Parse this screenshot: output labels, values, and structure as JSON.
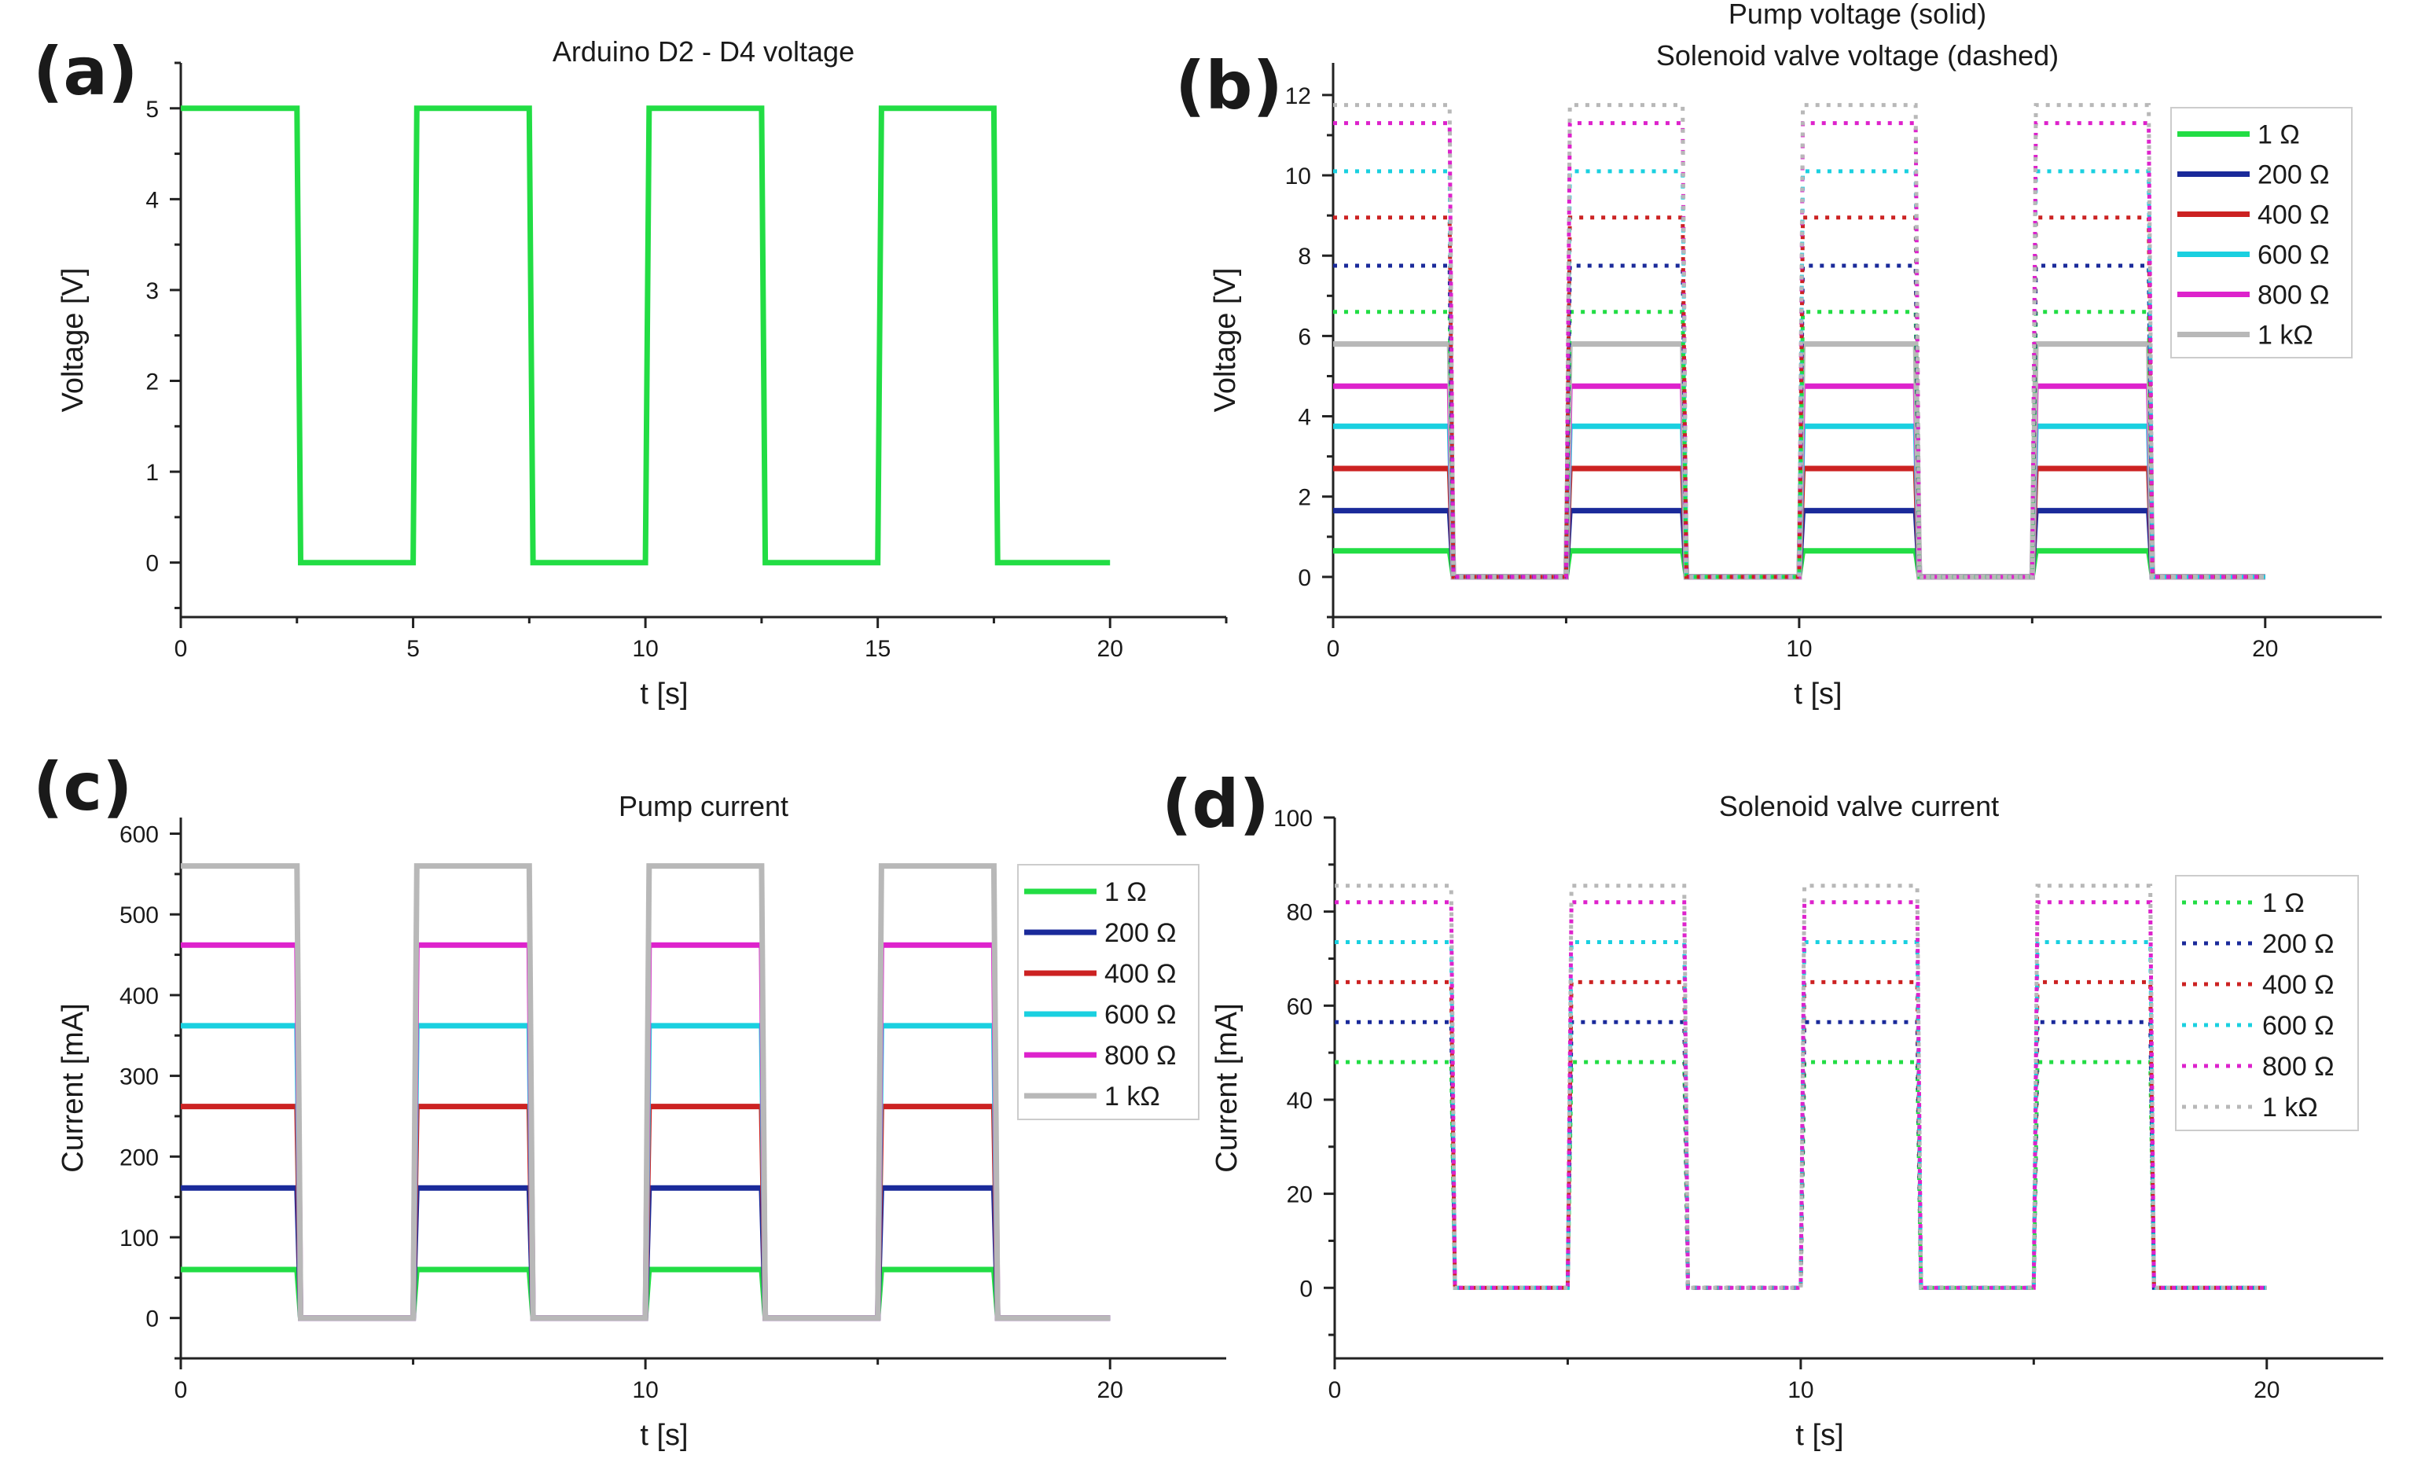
{
  "chart_data": [
    {
      "id": "a",
      "panel_label": "(a)",
      "type": "line",
      "title_lines": [
        "Arduino D2 - D4 voltage"
      ],
      "xlabel": "t [s]",
      "ylabel": "Voltage [V]",
      "xlim": [
        0,
        22.5
      ],
      "ylim": [
        -0.6,
        5.5
      ],
      "xticks": [
        0,
        5,
        10,
        15,
        20
      ],
      "yticks": [
        0,
        1,
        2,
        3,
        4,
        5
      ],
      "legend": null,
      "series": [
        {
          "name": "Arduino D2 - D4",
          "color": "#22dd44",
          "style": "solid",
          "high": 5,
          "low": 0
        }
      ]
    },
    {
      "id": "b",
      "panel_label": "(b)",
      "type": "line",
      "title_lines": [
        "Pump voltage (solid)",
        "Solenoid valve voltage (dashed)"
      ],
      "xlabel": "t [s]",
      "ylabel": "Voltage [V]",
      "xlim": [
        0,
        22.5
      ],
      "ylim": [
        -1,
        12.8
      ],
      "xticks": [
        0,
        10,
        20
      ],
      "yticks": [
        0,
        2,
        4,
        6,
        8,
        10,
        12
      ],
      "legend": {
        "position": "top-right",
        "entries": [
          {
            "label": "1 Ω",
            "color": "#22dd44",
            "style": "solid"
          },
          {
            "label": "200 Ω",
            "color": "#1a2a9a",
            "style": "solid"
          },
          {
            "label": "400 Ω",
            "color": "#cc2222",
            "style": "solid"
          },
          {
            "label": "600 Ω",
            "color": "#1ad0e0",
            "style": "solid"
          },
          {
            "label": "800 Ω",
            "color": "#dd22cc",
            "style": "solid"
          },
          {
            "label": "1 kΩ",
            "color": "#b8b8b8",
            "style": "solid"
          }
        ]
      },
      "series": [
        {
          "name": "Pump 1 Ω",
          "color": "#22dd44",
          "style": "solid",
          "high": 0.65,
          "low": 0
        },
        {
          "name": "Pump 200 Ω",
          "color": "#1a2a9a",
          "style": "solid",
          "high": 1.65,
          "low": 0
        },
        {
          "name": "Pump 400 Ω",
          "color": "#cc2222",
          "style": "solid",
          "high": 2.7,
          "low": 0
        },
        {
          "name": "Pump 600 Ω",
          "color": "#1ad0e0",
          "style": "solid",
          "high": 3.75,
          "low": 0
        },
        {
          "name": "Pump 800 Ω",
          "color": "#dd22cc",
          "style": "solid",
          "high": 4.75,
          "low": 0
        },
        {
          "name": "Pump 1 kΩ",
          "color": "#b8b8b8",
          "style": "solid",
          "high": 5.8,
          "low": 0
        },
        {
          "name": "Valve 1 Ω",
          "color": "#22dd44",
          "style": "dotted",
          "high": 6.6,
          "low": 0
        },
        {
          "name": "Valve 200 Ω",
          "color": "#1a2a9a",
          "style": "dotted",
          "high": 7.75,
          "low": 0
        },
        {
          "name": "Valve 400 Ω",
          "color": "#cc2222",
          "style": "dotted",
          "high": 8.95,
          "low": 0
        },
        {
          "name": "Valve 600 Ω",
          "color": "#1ad0e0",
          "style": "dotted",
          "high": 10.1,
          "low": 0
        },
        {
          "name": "Valve 800 Ω",
          "color": "#dd22cc",
          "style": "dotted",
          "high": 11.3,
          "low": 0
        },
        {
          "name": "Valve 1 kΩ",
          "color": "#b8b8b8",
          "style": "dotted",
          "high": 11.75,
          "low": 0
        }
      ]
    },
    {
      "id": "c",
      "panel_label": "(c)",
      "type": "line",
      "title_lines": [
        "Pump current"
      ],
      "xlabel": "t [s]",
      "ylabel": "Current [mA]",
      "xlim": [
        0,
        22.5
      ],
      "ylim": [
        -50,
        620
      ],
      "xticks": [
        0,
        10,
        20
      ],
      "yticks": [
        0,
        100,
        200,
        300,
        400,
        500,
        600
      ],
      "legend": {
        "position": "top-right",
        "entries": [
          {
            "label": "1 Ω",
            "color": "#22dd44",
            "style": "solid"
          },
          {
            "label": "200 Ω",
            "color": "#1a2a9a",
            "style": "solid"
          },
          {
            "label": "400 Ω",
            "color": "#cc2222",
            "style": "solid"
          },
          {
            "label": "600 Ω",
            "color": "#1ad0e0",
            "style": "solid"
          },
          {
            "label": "800 Ω",
            "color": "#dd22cc",
            "style": "solid"
          },
          {
            "label": "1 kΩ",
            "color": "#b8b8b8",
            "style": "solid"
          }
        ]
      },
      "series": [
        {
          "name": "1 Ω",
          "color": "#22dd44",
          "style": "solid",
          "high": 60,
          "low": 0
        },
        {
          "name": "200 Ω",
          "color": "#1a2a9a",
          "style": "solid",
          "high": 161,
          "low": 0
        },
        {
          "name": "400 Ω",
          "color": "#cc2222",
          "style": "solid",
          "high": 262,
          "low": 0
        },
        {
          "name": "600 Ω",
          "color": "#1ad0e0",
          "style": "solid",
          "high": 362,
          "low": 0
        },
        {
          "name": "800 Ω",
          "color": "#dd22cc",
          "style": "solid",
          "high": 462,
          "low": 0
        },
        {
          "name": "1 kΩ",
          "color": "#b8b8b8",
          "style": "solid",
          "high": 560,
          "low": 0
        }
      ]
    },
    {
      "id": "d",
      "panel_label": "(d)",
      "type": "line",
      "title_lines": [
        "Solenoid valve current"
      ],
      "xlabel": "t [s]",
      "ylabel": "Current [mA]",
      "xlim": [
        0,
        22.5
      ],
      "ylim": [
        -15,
        100
      ],
      "xticks": [
        0,
        10,
        20
      ],
      "yticks": [
        0,
        20,
        40,
        60,
        80,
        100
      ],
      "legend": {
        "position": "top-right",
        "entries": [
          {
            "label": "1 Ω",
            "color": "#22dd44",
            "style": "dotted"
          },
          {
            "label": "200 Ω",
            "color": "#1a2a9a",
            "style": "dotted"
          },
          {
            "label": "400 Ω",
            "color": "#cc2222",
            "style": "dotted"
          },
          {
            "label": "600 Ω",
            "color": "#1ad0e0",
            "style": "dotted"
          },
          {
            "label": "800 Ω",
            "color": "#dd22cc",
            "style": "dotted"
          },
          {
            "label": "1 kΩ",
            "color": "#b8b8b8",
            "style": "dotted"
          }
        ]
      },
      "series": [
        {
          "name": "1 Ω",
          "color": "#22dd44",
          "style": "dotted",
          "high": 48,
          "low": 0
        },
        {
          "name": "200 Ω",
          "color": "#1a2a9a",
          "style": "dotted",
          "high": 56.5,
          "low": 0
        },
        {
          "name": "400 Ω",
          "color": "#cc2222",
          "style": "dotted",
          "high": 65,
          "low": 0
        },
        {
          "name": "600 Ω",
          "color": "#1ad0e0",
          "style": "dotted",
          "high": 73.5,
          "low": 0
        },
        {
          "name": "800 Ω",
          "color": "#dd22cc",
          "style": "dotted",
          "high": 82,
          "low": 0
        },
        {
          "name": "1 kΩ",
          "color": "#b8b8b8",
          "style": "dotted",
          "high": 85.5,
          "low": 0
        }
      ]
    }
  ],
  "signal": {
    "period_s": 5,
    "on_duration_s": 2.5,
    "cycles": 4,
    "end_s": 20
  }
}
